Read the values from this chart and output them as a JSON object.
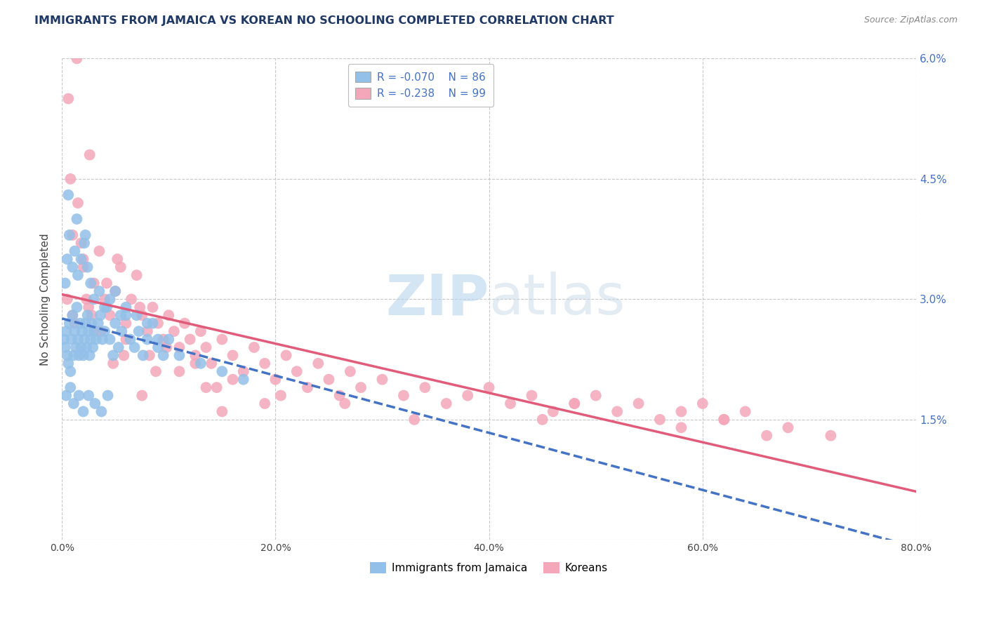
{
  "title": "IMMIGRANTS FROM JAMAICA VS KOREAN NO SCHOOLING COMPLETED CORRELATION CHART",
  "source": "Source: ZipAtlas.com",
  "ylabel": "No Schooling Completed",
  "legend_r_blue": "R = -0.070",
  "legend_n_blue": "N = 86",
  "legend_r_pink": "R = -0.238",
  "legend_n_pink": "N = 99",
  "legend_label_blue": "Immigrants from Jamaica",
  "legend_label_pink": "Koreans",
  "blue_color": "#92C0E8",
  "pink_color": "#F4A7B9",
  "blue_line_color": "#4472C4",
  "pink_line_color": "#E05C7A",
  "title_color": "#1F3864",
  "axis_label_color": "#4472C4",
  "grid_color": "#C8C8C8",
  "x_min": 0.0,
  "x_max": 80.0,
  "y_min": 0.0,
  "y_max": 6.0,
  "blue_scatter_x": [
    0.2,
    0.3,
    0.4,
    0.5,
    0.6,
    0.7,
    0.8,
    0.9,
    1.0,
    1.1,
    1.2,
    1.3,
    1.4,
    1.5,
    1.6,
    1.7,
    1.8,
    1.9,
    2.0,
    2.1,
    2.2,
    2.3,
    2.4,
    2.5,
    2.6,
    2.7,
    2.8,
    2.9,
    3.0,
    3.2,
    3.4,
    3.6,
    3.8,
    4.0,
    4.2,
    4.5,
    4.8,
    5.0,
    5.3,
    5.6,
    6.0,
    6.4,
    6.8,
    7.2,
    7.6,
    8.0,
    8.5,
    9.0,
    9.5,
    10.0,
    0.3,
    0.5,
    0.7,
    1.0,
    1.2,
    1.5,
    1.8,
    2.1,
    2.4,
    2.7,
    3.0,
    3.5,
    4.0,
    4.5,
    5.0,
    5.5,
    6.0,
    7.0,
    8.0,
    9.0,
    0.4,
    0.8,
    1.1,
    1.6,
    2.0,
    2.5,
    3.1,
    3.7,
    4.3,
    11.0,
    0.6,
    1.4,
    2.2,
    13.0,
    15.0,
    17.0
  ],
  "blue_scatter_y": [
    2.5,
    2.4,
    2.6,
    2.3,
    2.2,
    2.7,
    2.1,
    2.5,
    2.8,
    2.3,
    2.6,
    2.4,
    2.9,
    2.5,
    2.3,
    2.7,
    2.4,
    2.6,
    2.3,
    2.5,
    2.7,
    2.4,
    2.8,
    2.6,
    2.3,
    2.5,
    2.7,
    2.4,
    2.6,
    2.5,
    2.7,
    2.8,
    2.5,
    2.6,
    2.9,
    2.5,
    2.3,
    2.7,
    2.4,
    2.6,
    2.8,
    2.5,
    2.4,
    2.6,
    2.3,
    2.5,
    2.7,
    2.4,
    2.3,
    2.5,
    3.2,
    3.5,
    3.8,
    3.4,
    3.6,
    3.3,
    3.5,
    3.7,
    3.4,
    3.2,
    3.0,
    3.1,
    2.9,
    3.0,
    3.1,
    2.8,
    2.9,
    2.8,
    2.7,
    2.5,
    1.8,
    1.9,
    1.7,
    1.8,
    1.6,
    1.8,
    1.7,
    1.6,
    1.8,
    2.3,
    4.3,
    4.0,
    3.8,
    2.2,
    2.1,
    2.0
  ],
  "pink_scatter_x": [
    0.5,
    1.0,
    1.5,
    2.0,
    2.5,
    3.0,
    3.5,
    4.0,
    4.5,
    5.0,
    5.5,
    6.0,
    6.5,
    7.0,
    7.5,
    8.0,
    8.5,
    9.0,
    9.5,
    10.0,
    10.5,
    11.0,
    11.5,
    12.0,
    12.5,
    13.0,
    13.5,
    14.0,
    15.0,
    16.0,
    17.0,
    18.0,
    19.0,
    20.0,
    21.0,
    22.0,
    23.0,
    24.0,
    25.0,
    26.0,
    27.0,
    28.0,
    30.0,
    32.0,
    34.0,
    36.0,
    38.0,
    40.0,
    42.0,
    44.0,
    46.0,
    48.0,
    50.0,
    52.0,
    54.0,
    56.0,
    58.0,
    60.0,
    62.0,
    64.0,
    1.2,
    2.3,
    3.7,
    5.2,
    7.3,
    9.8,
    12.5,
    16.0,
    20.5,
    26.5,
    0.8,
    1.8,
    2.8,
    4.2,
    6.0,
    8.2,
    11.0,
    14.5,
    19.0,
    33.0,
    1.0,
    2.0,
    3.3,
    5.8,
    8.8,
    13.5,
    48.0,
    62.0,
    68.0,
    72.0,
    0.6,
    1.4,
    2.6,
    4.8,
    7.5,
    15.0,
    45.0,
    58.0,
    66.0
  ],
  "pink_scatter_y": [
    3.0,
    3.8,
    4.2,
    3.5,
    2.9,
    3.2,
    3.6,
    3.0,
    2.8,
    3.1,
    3.4,
    2.7,
    3.0,
    3.3,
    2.8,
    2.6,
    2.9,
    2.7,
    2.5,
    2.8,
    2.6,
    2.4,
    2.7,
    2.5,
    2.3,
    2.6,
    2.4,
    2.2,
    2.5,
    2.3,
    2.1,
    2.4,
    2.2,
    2.0,
    2.3,
    2.1,
    1.9,
    2.2,
    2.0,
    1.8,
    2.1,
    1.9,
    2.0,
    1.8,
    1.9,
    1.7,
    1.8,
    1.9,
    1.7,
    1.8,
    1.6,
    1.7,
    1.8,
    1.6,
    1.7,
    1.5,
    1.6,
    1.7,
    1.5,
    1.6,
    2.7,
    3.0,
    2.6,
    3.5,
    2.9,
    2.4,
    2.2,
    2.0,
    1.8,
    1.7,
    4.5,
    3.7,
    2.8,
    3.2,
    2.5,
    2.3,
    2.1,
    1.9,
    1.7,
    1.5,
    2.8,
    3.4,
    2.6,
    2.3,
    2.1,
    1.9,
    1.7,
    1.5,
    1.4,
    1.3,
    5.5,
    6.0,
    4.8,
    2.2,
    1.8,
    1.6,
    1.5,
    1.4,
    1.3
  ]
}
